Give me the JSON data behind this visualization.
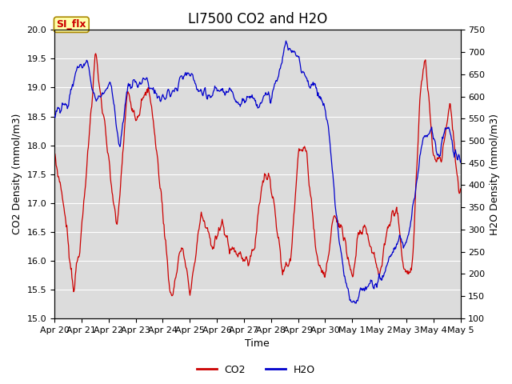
{
  "title": "LI7500 CO2 and H2O",
  "xlabel": "Time",
  "ylabel_left": "CO2 Density (mmol/m3)",
  "ylabel_right": "H2O Density (mmol/m3)",
  "co2_ylim": [
    15.0,
    20.0
  ],
  "h2o_ylim": [
    100,
    750
  ],
  "co2_color": "#cc0000",
  "h2o_color": "#0000cc",
  "background_color": "#dcdcdc",
  "tab_text": "SI_flx",
  "tab_bg": "#ffffaa",
  "tab_border": "#aa8800",
  "tab_text_color": "#cc0000",
  "legend_co2": "CO2",
  "legend_h2o": "H2O",
  "x_tick_labels": [
    "Apr 20",
    "Apr 21",
    "Apr 22",
    "Apr 23",
    "Apr 24",
    "Apr 25",
    "Apr 26",
    "Apr 27",
    "Apr 28",
    "Apr 29",
    "Apr 30",
    "May 1",
    "May 2",
    "May 3",
    "May 4",
    "May 5"
  ],
  "title_fontsize": 12,
  "axis_fontsize": 9,
  "tick_fontsize": 8,
  "legend_fontsize": 9,
  "figsize": [
    6.4,
    4.8
  ],
  "dpi": 100
}
